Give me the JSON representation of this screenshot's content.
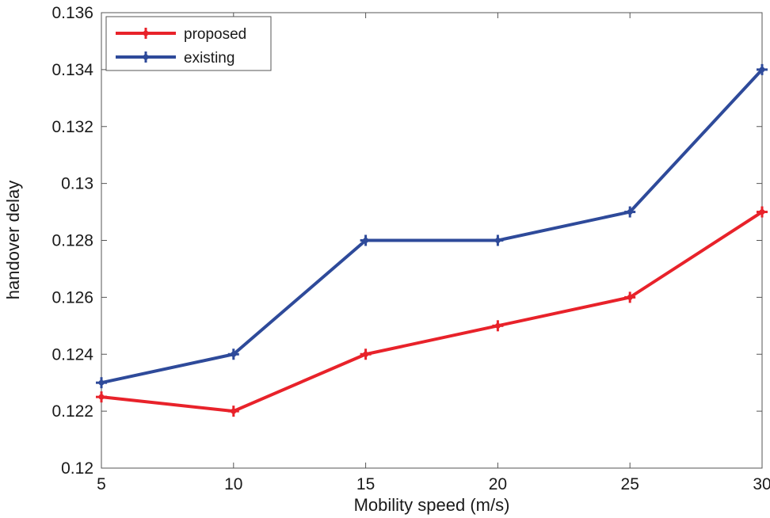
{
  "chart_data": {
    "type": "line",
    "title": "",
    "xlabel": "Mobility speed (m/s)",
    "ylabel": "handover delay",
    "x": [
      5,
      10,
      15,
      20,
      25,
      30
    ],
    "xlim": [
      5,
      30
    ],
    "ylim": [
      0.12,
      0.136
    ],
    "xticks": [
      5,
      10,
      15,
      20,
      25,
      30
    ],
    "xtick_labels": [
      "5",
      "10",
      "15",
      "20",
      "25",
      "30"
    ],
    "yticks": [
      0.12,
      0.122,
      0.124,
      0.126,
      0.128,
      0.13,
      0.132,
      0.134,
      0.136
    ],
    "ytick_labels": [
      "0.12",
      "0.122",
      "0.124",
      "0.126",
      "0.128",
      "0.13",
      "0.132",
      "0.134",
      "0.136"
    ],
    "grid": false,
    "legend_position": "top-left",
    "series": [
      {
        "name": "proposed",
        "color": "#e8222a",
        "marker": "cross",
        "values": [
          0.1225,
          0.122,
          0.124,
          0.125,
          0.126,
          0.129
        ]
      },
      {
        "name": "existing",
        "color": "#2e4a9a",
        "marker": "cross",
        "values": [
          0.123,
          0.124,
          0.128,
          0.128,
          0.129,
          0.134
        ]
      }
    ]
  }
}
